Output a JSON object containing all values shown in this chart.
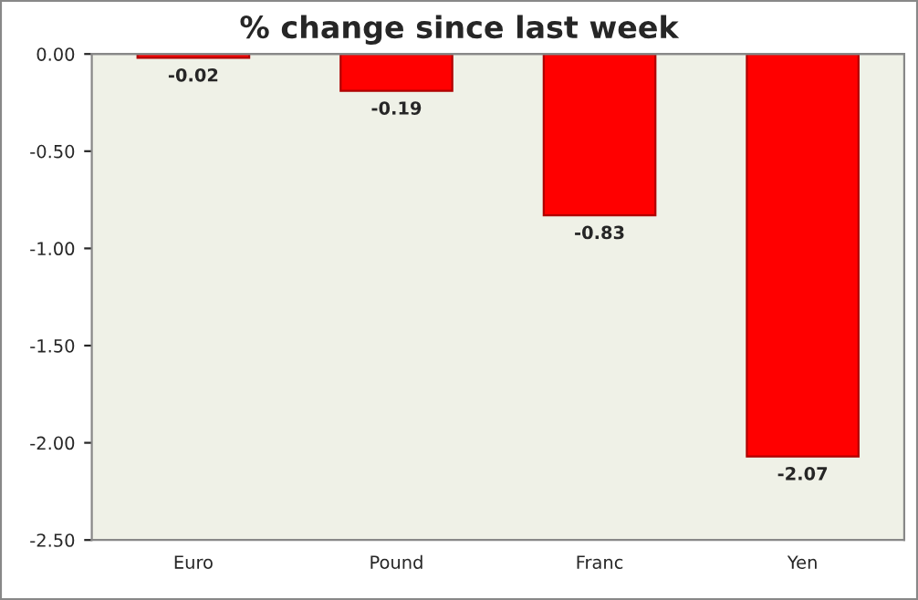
{
  "chart_data": {
    "type": "bar",
    "title": "% change since last week",
    "categories": [
      "Euro",
      "Pound",
      "Franc",
      "Yen"
    ],
    "values": [
      -0.02,
      -0.19,
      -0.83,
      -2.07
    ],
    "color": "#ff0000",
    "ylim": [
      -2.5,
      0
    ],
    "yticks": [
      {
        "value": 0,
        "label": "0.00"
      },
      {
        "value": -0.5,
        "label": "-0.50"
      },
      {
        "value": -1,
        "label": "-1.00"
      },
      {
        "value": -1.5,
        "label": "-1.50"
      },
      {
        "value": -2,
        "label": "-2.00"
      },
      {
        "value": -2.5,
        "label": "-2.50"
      }
    ],
    "grid": false,
    "legend": false,
    "data_labels": true
  }
}
